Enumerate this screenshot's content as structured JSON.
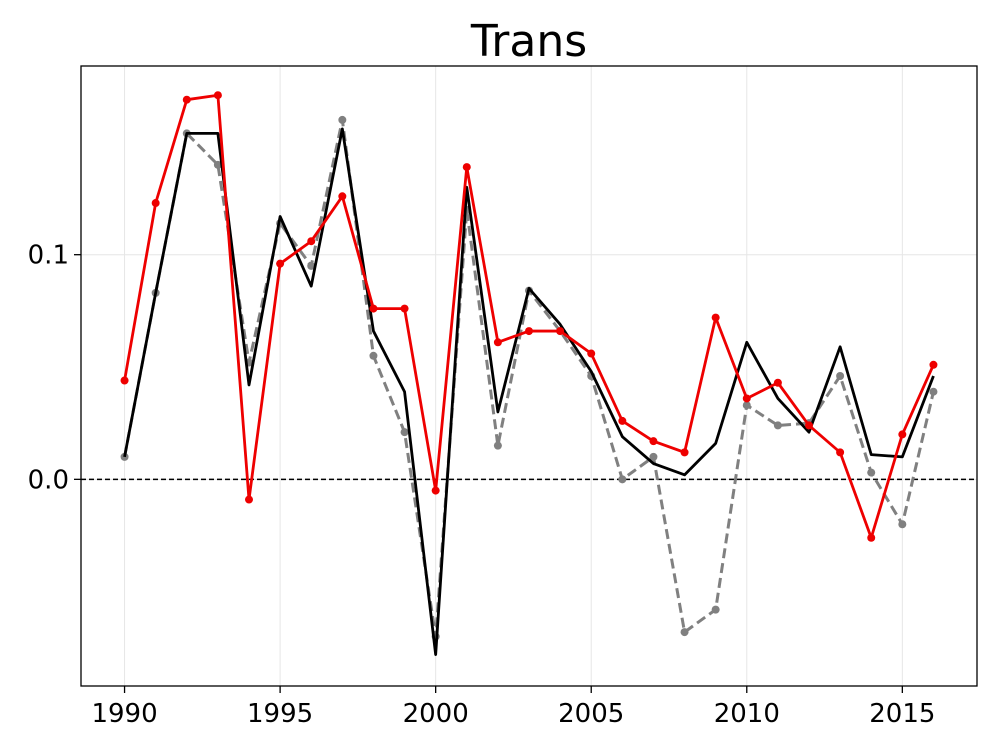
{
  "chart_data": {
    "type": "line",
    "title": "Trans",
    "xlabel": "",
    "ylabel": "",
    "xlim": [
      1988.6,
      2017.4
    ],
    "ylim": [
      -0.092,
      0.184
    ],
    "x_ticks": [
      1990,
      1995,
      2000,
      2005,
      2010,
      2015
    ],
    "y_ticks": [
      0.0,
      0.1
    ],
    "y_tick_labels": [
      "0.0",
      "0.1"
    ],
    "grid": true,
    "reference_line": {
      "y": 0.0,
      "color": "#000000",
      "style": "dashed"
    },
    "x": [
      1990,
      1991,
      1992,
      1993,
      1994,
      1995,
      1996,
      1997,
      1998,
      1999,
      2000,
      2001,
      2002,
      2003,
      2004,
      2005,
      2006,
      2007,
      2008,
      2009,
      2010,
      2011,
      2012,
      2013,
      2014,
      2015,
      2016
    ],
    "series": [
      {
        "color": "#808080",
        "style": "dashed",
        "markers": true,
        "values": [
          0.01,
          0.083,
          0.154,
          0.14,
          0.052,
          0.114,
          0.095,
          0.16,
          0.055,
          0.021,
          -0.07,
          0.12,
          0.015,
          0.084,
          0.066,
          0.046,
          0.0,
          0.01,
          -0.068,
          -0.058,
          0.033,
          0.024,
          0.025,
          0.046,
          0.003,
          -0.02,
          0.039
        ]
      },
      {
        "color": "#000000",
        "style": "solid",
        "markers": false,
        "values": [
          0.01,
          0.083,
          0.154,
          0.154,
          0.042,
          0.117,
          0.086,
          0.156,
          0.066,
          0.039,
          -0.078,
          0.13,
          0.03,
          0.085,
          0.069,
          0.048,
          0.019,
          0.007,
          0.002,
          0.016,
          0.061,
          0.036,
          0.021,
          0.059,
          0.011,
          0.01,
          0.046
        ]
      },
      {
        "color": "#ee0000",
        "style": "solid",
        "markers": true,
        "values": [
          0.044,
          0.123,
          0.169,
          0.171,
          -0.009,
          0.096,
          0.106,
          0.126,
          0.076,
          0.076,
          -0.005,
          0.139,
          0.061,
          0.066,
          0.066,
          0.056,
          0.026,
          0.017,
          0.012,
          0.072,
          0.036,
          0.043,
          0.024,
          0.012,
          -0.026,
          0.02,
          0.051
        ]
      }
    ]
  }
}
